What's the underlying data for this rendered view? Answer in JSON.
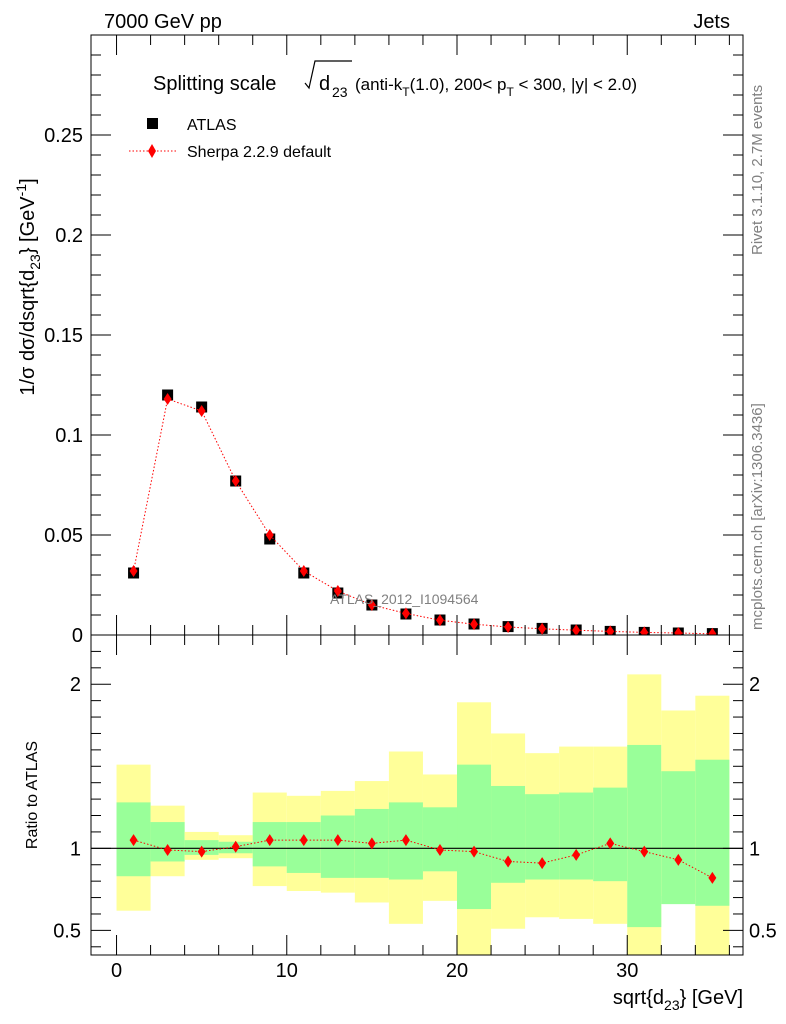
{
  "header": {
    "left": "7000 GeV pp",
    "right": "Jets"
  },
  "side_labels": {
    "rivet": "Rivet 3.1.10,  2.7M events",
    "mcplots": "mcplots.cern.ch [arXiv:1306.3436]"
  },
  "colors": {
    "atlas": "#000000",
    "sherpa": "#ff0000",
    "band_inner": "#99ff99",
    "band_outer": "#ffff99",
    "watermark": "#808080"
  },
  "chart_data": [
    {
      "type": "scatter",
      "panel": "main",
      "title": {
        "prefix": "Splitting scale ",
        "var": "d",
        "var_sub": "23",
        "cuts_a": "(anti-k",
        "cuts_a_sub": "T",
        "cuts_b": "(1.0), 200< p",
        "cuts_b_sub": "T",
        "cuts_c": " < 300, |y| < 2.0)"
      },
      "ylabel": {
        "a": "1/σ dσ/dsqrt{d",
        "a_sub": "23",
        "b": "} [GeV",
        "b_sup": "-1",
        "c": "]"
      },
      "watermark": "ATLAS_2012_I1094564",
      "xlim": [
        -1.5,
        36.8
      ],
      "ylim": [
        0,
        0.3
      ],
      "yticks": [
        0,
        0.05,
        0.1,
        0.15,
        0.2,
        0.25
      ],
      "ytick_labels": [
        "0",
        "0.05",
        "0.1",
        "0.15",
        "0.2",
        "0.25"
      ],
      "legend_position": "top-left",
      "series": [
        {
          "name": "ATLAS",
          "marker": "square",
          "x": [
            1,
            3,
            5,
            7,
            9,
            11,
            13,
            15,
            17,
            19,
            21,
            23,
            25,
            27,
            29,
            31,
            33,
            35
          ],
          "values": [
            0.031,
            0.12,
            0.114,
            0.077,
            0.048,
            0.031,
            0.021,
            0.015,
            0.0105,
            0.0075,
            0.0055,
            0.0042,
            0.0033,
            0.0025,
            0.0018,
            0.0013,
            0.001,
            0.0007
          ]
        },
        {
          "name": "Sherpa 2.2.9 default",
          "marker": "diamond",
          "line": "dotted",
          "x": [
            1,
            3,
            5,
            7,
            9,
            11,
            13,
            15,
            17,
            19,
            21,
            23,
            25,
            27,
            29,
            31,
            33,
            35
          ],
          "values": [
            0.032,
            0.118,
            0.112,
            0.077,
            0.05,
            0.032,
            0.022,
            0.015,
            0.0108,
            0.0074,
            0.0054,
            0.004,
            0.0031,
            0.0024,
            0.0018,
            0.0013,
            0.001,
            0.0006
          ]
        }
      ]
    },
    {
      "type": "line",
      "panel": "ratio",
      "ylabel": "Ratio to ATLAS",
      "xlabel": {
        "a": "sqrt{d",
        "a_sub": "23",
        "b": "} [GeV]"
      },
      "xlim": [
        -1.5,
        36.8
      ],
      "ylim": [
        0.35,
        2.3
      ],
      "xticks": [
        0,
        10,
        20,
        30
      ],
      "xtick_labels": [
        "0",
        "10",
        "20",
        "30"
      ],
      "yticks": [
        0.5,
        1,
        2
      ],
      "ytick_labels": [
        "0.5",
        "1",
        "2"
      ],
      "bin_edges": [
        0,
        2,
        4,
        6,
        8,
        10,
        12,
        14,
        16,
        18,
        20,
        22,
        24,
        26,
        28,
        30,
        32,
        34,
        36
      ],
      "bands": {
        "inner_low": [
          0.83,
          0.92,
          0.96,
          0.97,
          0.89,
          0.85,
          0.82,
          0.82,
          0.81,
          0.86,
          0.63,
          0.79,
          0.81,
          0.81,
          0.8,
          0.52,
          0.66,
          0.65
        ],
        "inner_high": [
          1.28,
          1.16,
          1.05,
          1.04,
          1.16,
          1.16,
          1.2,
          1.24,
          1.28,
          1.25,
          1.51,
          1.38,
          1.33,
          1.34,
          1.37,
          1.63,
          1.47,
          1.54
        ],
        "outer_low": [
          0.62,
          0.83,
          0.93,
          0.94,
          0.77,
          0.74,
          0.73,
          0.67,
          0.54,
          0.68,
          0.35,
          0.51,
          0.58,
          0.57,
          0.54,
          0.35,
          0.71,
          0.35
        ],
        "outer_high": [
          1.51,
          1.26,
          1.1,
          1.08,
          1.34,
          1.32,
          1.35,
          1.41,
          1.59,
          1.45,
          1.89,
          1.7,
          1.58,
          1.62,
          1.62,
          2.06,
          1.84,
          1.93
        ]
      },
      "series": [
        {
          "name": "Sherpa 2.2.9 default / ATLAS",
          "marker": "diamond",
          "line": "dotted",
          "x": [
            1,
            3,
            5,
            7,
            9,
            11,
            13,
            15,
            17,
            19,
            21,
            23,
            25,
            27,
            29,
            31,
            33,
            35
          ],
          "values": [
            1.05,
            0.99,
            0.98,
            1.01,
            1.05,
            1.05,
            1.05,
            1.03,
            1.05,
            0.99,
            0.98,
            0.92,
            0.91,
            0.96,
            1.03,
            0.98,
            0.93,
            0.82
          ]
        }
      ]
    }
  ]
}
